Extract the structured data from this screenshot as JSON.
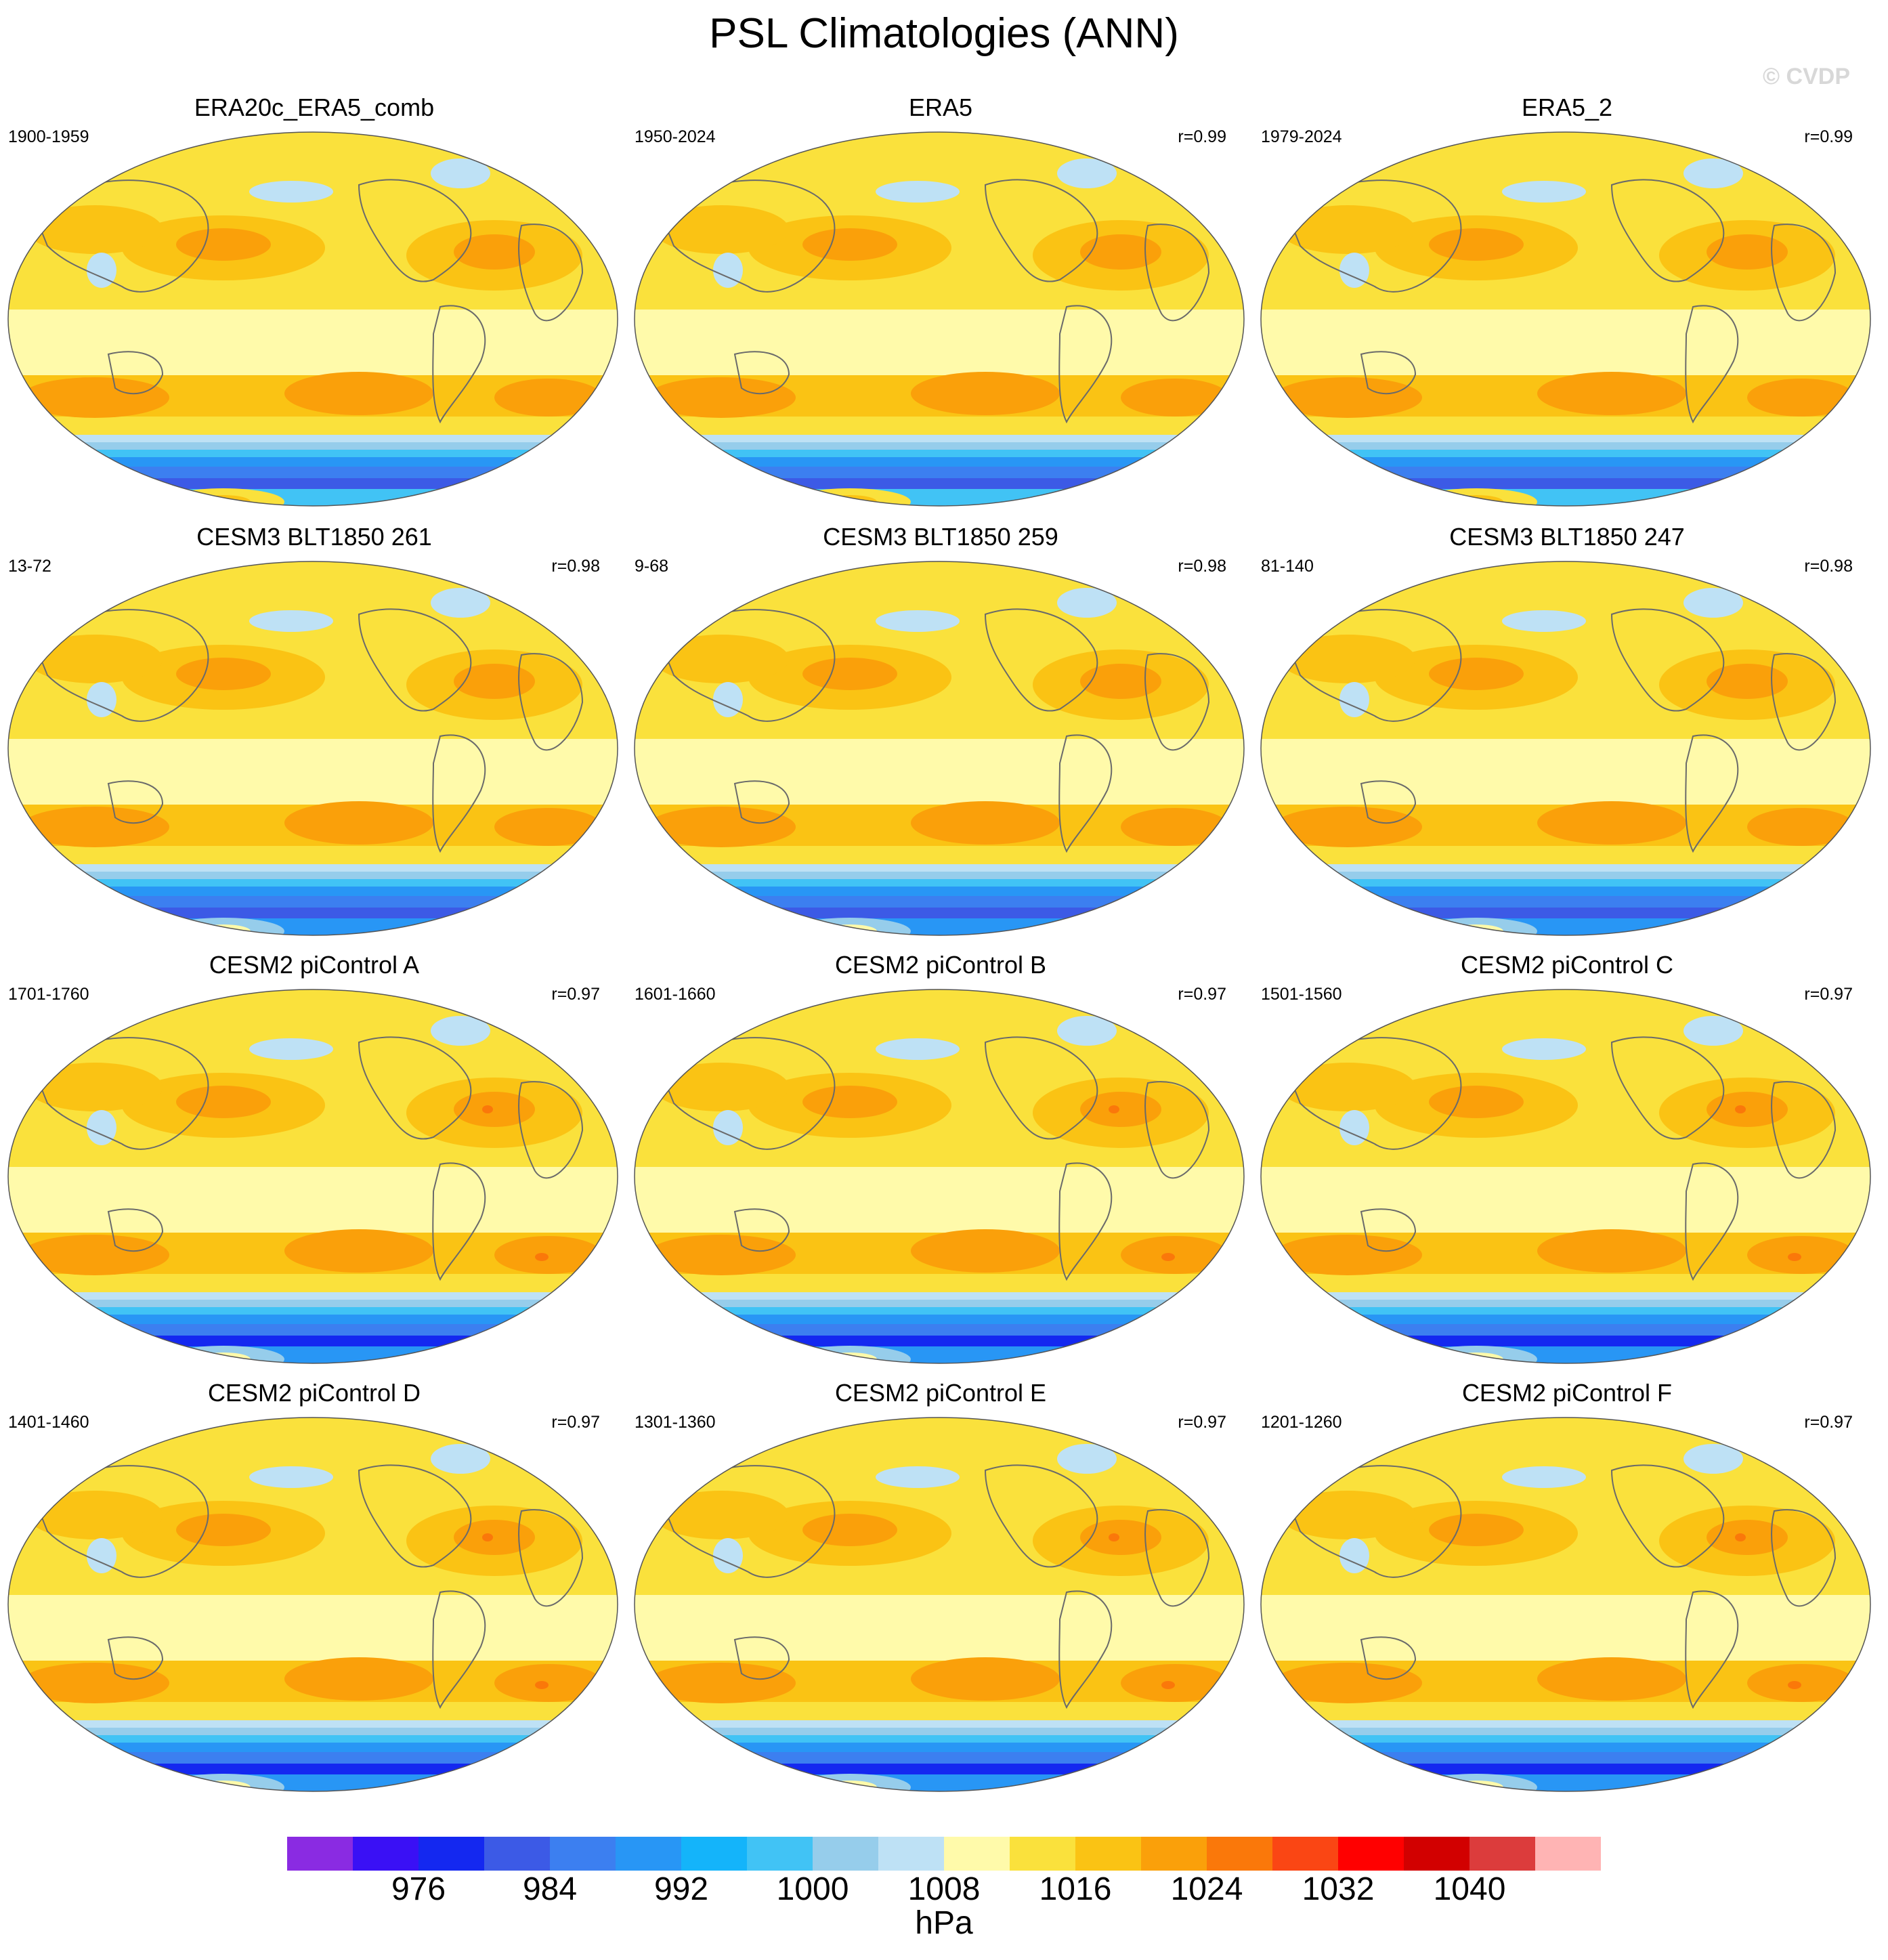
{
  "title": "PSL Climatologies (ANN)",
  "watermark": "© CVDP",
  "panels": [
    {
      "title": "ERA20c_ERA5_comb",
      "years": "1900-1959",
      "r": ""
    },
    {
      "title": "ERA5",
      "years": "1950-2024",
      "r": "r=0.99"
    },
    {
      "title": "ERA5_2",
      "years": "1979-2024",
      "r": "r=0.99"
    },
    {
      "title": "CESM3 BLT1850 261",
      "years": "13-72",
      "r": "r=0.98"
    },
    {
      "title": "CESM3 BLT1850 259",
      "years": "9-68",
      "r": "r=0.98"
    },
    {
      "title": "CESM3 BLT1850 247",
      "years": "81-140",
      "r": "r=0.98"
    },
    {
      "title": "CESM2 piControl A",
      "years": "1701-1760",
      "r": "r=0.97"
    },
    {
      "title": "CESM2 piControl B",
      "years": "1601-1660",
      "r": "r=0.97"
    },
    {
      "title": "CESM2 piControl C",
      "years": "1501-1560",
      "r": "r=0.97"
    },
    {
      "title": "CESM2 piControl D",
      "years": "1401-1460",
      "r": "r=0.97"
    },
    {
      "title": "CESM2 piControl E",
      "years": "1301-1360",
      "r": "r=0.97"
    },
    {
      "title": "CESM2 piControl F",
      "years": "1201-1260",
      "r": "r=0.97"
    }
  ],
  "colorbar": {
    "colors": [
      "#8a2be2",
      "#3a10f5",
      "#1428f0",
      "#3c5ae6",
      "#3c7ff0",
      "#2896f5",
      "#14b4fa",
      "#41c3f5",
      "#96cdeb",
      "#bee1f5",
      "#fffaaa",
      "#fae13c",
      "#fac314",
      "#faa00a",
      "#fa780a",
      "#fa4614",
      "#ff0000",
      "#d20000",
      "#dc3c3c",
      "#ffb4b4"
    ],
    "labels": [
      "976",
      "984",
      "992",
      "1000",
      "1008",
      "1016",
      "1024",
      "1032",
      "1040"
    ],
    "units": "hPa"
  }
}
